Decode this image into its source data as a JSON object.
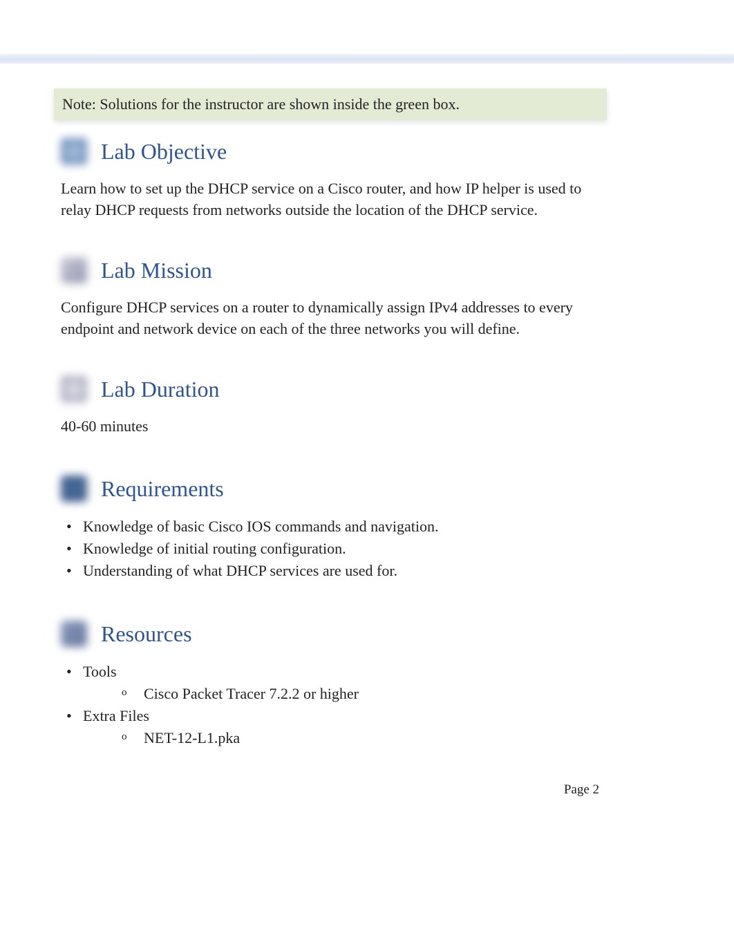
{
  "note": {
    "label": "Note:",
    "text": "Solutions for the instructor are shown inside the green box."
  },
  "sections": {
    "objective": {
      "title": "Lab Objective",
      "body": "Learn how to set up the DHCP service on a Cisco router, and how IP helper is used to relay DHCP requests from networks outside the location of the DHCP service."
    },
    "mission": {
      "title": "Lab Mission",
      "body": "Configure DHCP services on a router to dynamically assign IPv4 addresses to every endpoint and network device on each of the three networks you will define."
    },
    "duration": {
      "title": "Lab Duration",
      "body": "40-60 minutes"
    },
    "requirements": {
      "title": "Requirements",
      "items": [
        "Knowledge of basic Cisco IOS commands and navigation.",
        "Knowledge of initial routing configuration.",
        "Understanding of what DHCP services are used for."
      ]
    },
    "resources": {
      "title": "Resources",
      "items": [
        {
          "label": "Tools",
          "sub": [
            "Cisco Packet Tracer 7.2.2 or higher"
          ]
        },
        {
          "label": "Extra Files",
          "sub": [
            "NET-12-L1.pka"
          ]
        }
      ]
    }
  },
  "page_number": "Page 2",
  "colors": {
    "heading": "#2e5496",
    "note_bg": "#e3ebd5",
    "text": "#222222",
    "top_bar": "#dbe4f3"
  }
}
